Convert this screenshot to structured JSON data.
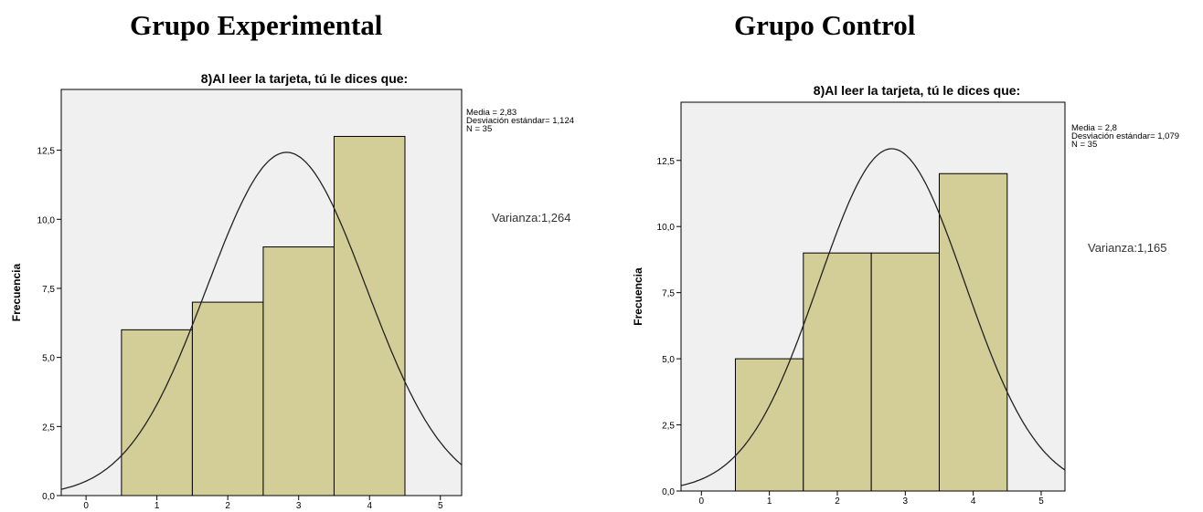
{
  "group_titles": [
    "Grupo Experimental",
    "Grupo Control"
  ],
  "chart_data": [
    {
      "type": "bar",
      "title": "8)Al leer la tarjeta, tú le dices que:",
      "ylabel": "Frecuencia",
      "xlabel": "",
      "x_ticks": [
        "0",
        "1",
        "2",
        "3",
        "4",
        "5"
      ],
      "y_ticks": [
        "0,0",
        "2,5",
        "5,0",
        "7,5",
        "10,0",
        "12,5"
      ],
      "xlim": [
        -0.35,
        5.3
      ],
      "ylim": [
        0,
        14.7
      ],
      "categories": [
        "1",
        "2",
        "3",
        "4"
      ],
      "values": [
        6,
        7,
        9,
        13
      ],
      "normal_curve": {
        "mean": 2.83,
        "sd": 1.124,
        "n": 35
      },
      "stats": [
        "Media = 2,83",
        "Desviación estándar= 1,124",
        "N = 35"
      ],
      "annotation": "Varianza:1,264",
      "colors": {
        "bar": "#d3ce98",
        "plot_bg": "#f0f0f0",
        "curve": "#222222"
      }
    },
    {
      "type": "bar",
      "title": "8)Al leer la tarjeta, tú le dices que:",
      "ylabel": "Frecuencia",
      "xlabel": "",
      "x_ticks": [
        "0",
        "1",
        "2",
        "3",
        "4",
        "5"
      ],
      "y_ticks": [
        "0,0",
        "2,5",
        "5,0",
        "7,5",
        "10,0",
        "12,5"
      ],
      "xlim": [
        -0.3,
        5.35
      ],
      "ylim": [
        0,
        14.7
      ],
      "categories": [
        "1",
        "2",
        "3",
        "4"
      ],
      "values": [
        5,
        9,
        9,
        12
      ],
      "normal_curve": {
        "mean": 2.8,
        "sd": 1.079,
        "n": 35
      },
      "stats": [
        "Media = 2,8",
        "Desviación estándar= 1,079",
        "N = 35"
      ],
      "annotation": "Varianza:1,165",
      "colors": {
        "bar": "#d3ce98",
        "plot_bg": "#f0f0f0",
        "curve": "#222222"
      }
    }
  ]
}
